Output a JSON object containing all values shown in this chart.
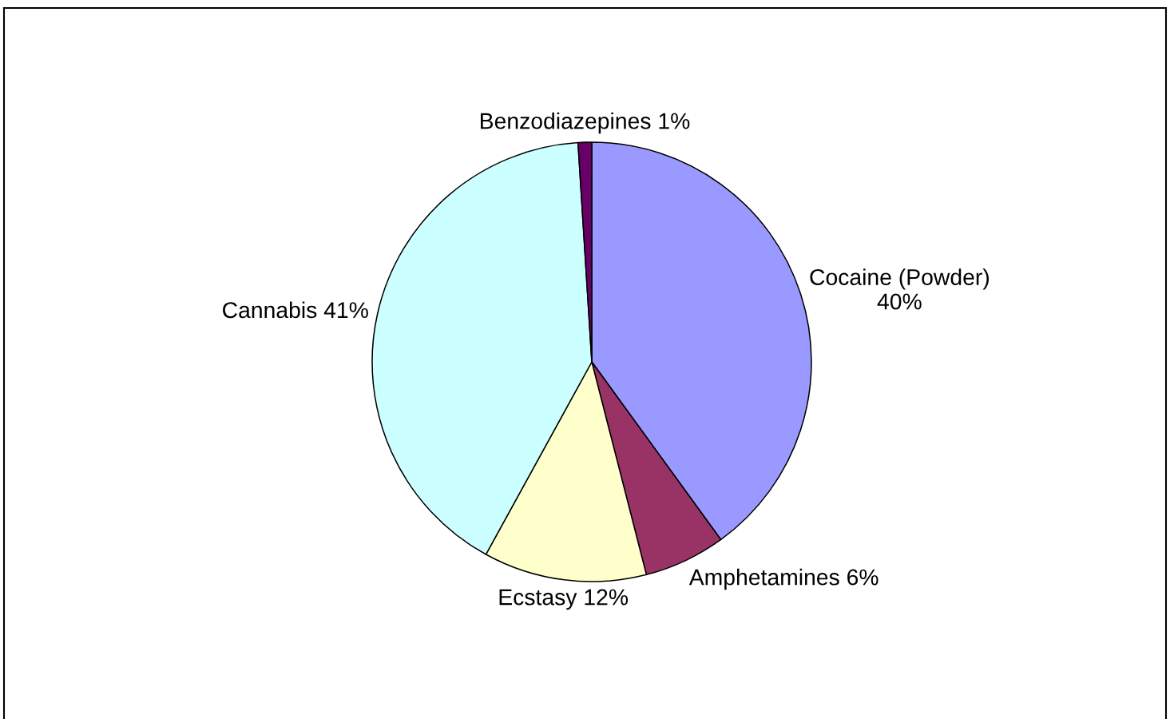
{
  "chart_data": {
    "type": "pie",
    "categories": [
      "Cocaine (Powder)",
      "Amphetamines",
      "Ecstasy",
      "Cannabis",
      "Benzodiazepines"
    ],
    "values": [
      40,
      6,
      12,
      41,
      1
    ],
    "colors": [
      "#9999ff",
      "#993366",
      "#ffffcc",
      "#ccffff",
      "#660066"
    ],
    "value_labels": [
      "40%",
      "6%",
      "12%",
      "41%",
      "1%"
    ]
  }
}
